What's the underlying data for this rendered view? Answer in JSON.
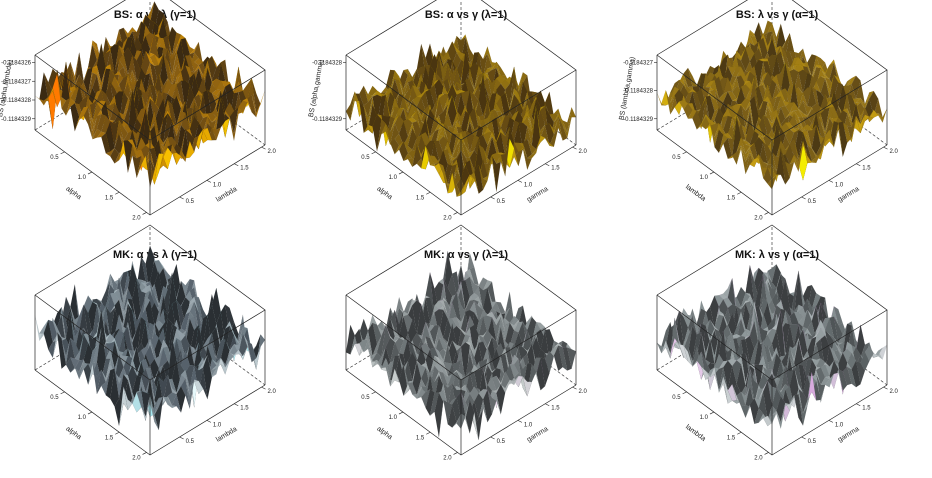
{
  "figure": {
    "background": "#ffffff"
  },
  "chart_data": [
    {
      "type": "surface3d",
      "title": "BS: α vs λ (γ=1)",
      "xlabel": "alpha",
      "ylabel": "lambda",
      "zlabel": "BS (alpha,lambda)",
      "xticks": [
        "0.5",
        "1.0",
        "1.5",
        "2.0"
      ],
      "yticks": [
        "0.5",
        "1.0",
        "1.5",
        "2.0"
      ],
      "zticks": [
        "-0.1184329",
        "-0.1184328",
        "-0.1184327",
        "-0.1184326"
      ],
      "xlim": [
        0.1,
        2.0
      ],
      "ylim": [
        0.1,
        2.0
      ],
      "palette": [
        "#3b2a12",
        "#6b4a14",
        "#9a6a10",
        "#c98a08",
        "#e6a800",
        "#f6c800",
        "#ff7a00"
      ],
      "surface_height": 0.55,
      "surface_roughness": 0.42,
      "seed": 11
    },
    {
      "type": "surface3d",
      "title": "BS: α vs γ (λ=1)",
      "xlabel": "alpha",
      "ylabel": "gamma",
      "zlabel": "BS (alpha,gamma)",
      "xticks": [
        "0.5",
        "1.0",
        "1.5",
        "2.0"
      ],
      "yticks": [
        "0.5",
        "1.0",
        "1.5",
        "2.0"
      ],
      "zticks": [
        "-0.1184329",
        "-0.1184328"
      ],
      "xlim": [
        0.1,
        2.0
      ],
      "ylim": [
        0.1,
        2.0
      ],
      "palette": [
        "#4a3510",
        "#6e5214",
        "#8e6e12",
        "#b08c10",
        "#c9a010",
        "#e2c000",
        "#f0e000"
      ],
      "surface_height": 0.3,
      "surface_roughness": 0.36,
      "seed": 23
    },
    {
      "type": "surface3d",
      "title": "BS: λ vs γ (α=1)",
      "xlabel": "lambda",
      "ylabel": "gamma",
      "zlabel": "BS (lambda,gamma)",
      "xticks": [
        "0.5",
        "1.0",
        "1.5",
        "2.0"
      ],
      "yticks": [
        "0.5",
        "1.0",
        "1.5",
        "2.0"
      ],
      "zticks": [
        "-0.1184329",
        "-0.1184328",
        "-0.1184327"
      ],
      "xlim": [
        0.1,
        2.0
      ],
      "ylim": [
        0.1,
        2.0
      ],
      "palette": [
        "#4d3a14",
        "#735818",
        "#957416",
        "#b48e14",
        "#cca412",
        "#e4c808",
        "#f4ec00"
      ],
      "surface_height": 0.45,
      "surface_roughness": 0.34,
      "seed": 37
    },
    {
      "type": "surface3d",
      "title": "MK: α vs λ (γ=1)",
      "xlabel": "alpha",
      "ylabel": "lambda",
      "zlabel": "",
      "xticks": [
        "0.5",
        "1.0",
        "1.5",
        "2.0"
      ],
      "yticks": [
        "0.5",
        "1.0",
        "1.5",
        "2.0"
      ],
      "zticks": [],
      "xlim": [
        0.1,
        2.0
      ],
      "ylim": [
        0.1,
        2.0
      ],
      "palette": [
        "#2a2f33",
        "#55606a",
        "#7f8c94",
        "#a7b4bb",
        "#c8d4d8",
        "#a8e8f0",
        "#e6f8fb"
      ],
      "surface_height": 0.5,
      "surface_roughness": 0.46,
      "seed": 41
    },
    {
      "type": "surface3d",
      "title": "MK: α vs γ (λ=1)",
      "xlabel": "alpha",
      "ylabel": "gamma",
      "zlabel": "",
      "xticks": [
        "0.5",
        "1.0",
        "1.5",
        "2.0"
      ],
      "yticks": [
        "0.5",
        "1.0",
        "1.5",
        "2.0"
      ],
      "zticks": [],
      "xlim": [
        0.1,
        2.0
      ],
      "ylim": [
        0.1,
        2.0
      ],
      "palette": [
        "#3a3d3f",
        "#5e6466",
        "#8a9294",
        "#b3baba",
        "#d2d6d6",
        "#d9a8e0",
        "#f0e6f2"
      ],
      "surface_height": 0.4,
      "surface_roughness": 0.4,
      "seed": 53
    },
    {
      "type": "surface3d",
      "title": "MK: λ vs γ (α=1)",
      "xlabel": "lambda",
      "ylabel": "gamma",
      "zlabel": "",
      "xticks": [
        "0.5",
        "1.0",
        "1.5",
        "2.0"
      ],
      "yticks": [
        "0.5",
        "1.0",
        "1.5",
        "2.0"
      ],
      "zticks": [],
      "xlim": [
        0.1,
        2.0
      ],
      "ylim": [
        0.1,
        2.0
      ],
      "palette": [
        "#3c3f41",
        "#5f6668",
        "#8a9496",
        "#b0b8ba",
        "#cfd4d6",
        "#d6a6dc",
        "#efe3f1"
      ],
      "surface_height": 0.42,
      "surface_roughness": 0.4,
      "seed": 67
    }
  ]
}
